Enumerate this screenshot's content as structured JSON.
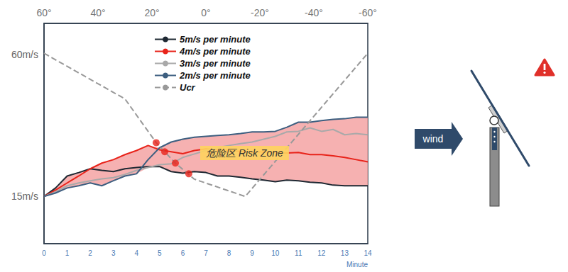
{
  "chart_data": {
    "type": "line",
    "x": [
      0,
      0.5,
      1,
      1.5,
      2,
      2.5,
      3,
      3.5,
      4,
      4.5,
      5,
      5.5,
      6,
      6.5,
      7,
      7.5,
      8,
      8.5,
      9,
      9.5,
      10,
      10.5,
      11,
      11.5,
      12,
      12.5,
      13,
      13.5,
      14
    ],
    "series": [
      {
        "name": "5m/s per minute",
        "color": "#1e2832",
        "values": [
          15,
          17.7,
          21.5,
          22.6,
          23.8,
          23.3,
          22.9,
          23.8,
          24.2,
          24.5,
          24.5,
          22.9,
          22.4,
          22.9,
          22.6,
          21.5,
          21.5,
          21.1,
          20.6,
          20.2,
          19.7,
          20.2,
          20.0,
          19.5,
          19.3,
          18.6,
          18.4,
          18.4,
          18.4
        ]
      },
      {
        "name": "4m/s per minute",
        "color": "#e8231a",
        "values": [
          15,
          17.0,
          19.3,
          21.5,
          23.8,
          25.6,
          26.7,
          28.3,
          29.6,
          31.2,
          29.8,
          29.2,
          28.6,
          29.6,
          30.1,
          29.8,
          29.6,
          29.3,
          29.0,
          29.2,
          29.0,
          28.8,
          29.0,
          28.3,
          28.3,
          27.9,
          27.4,
          26.7,
          26.0
        ]
      },
      {
        "name": "3m/s per minute",
        "color": "#a9a9a9",
        "values": [
          15,
          16.5,
          18.4,
          19.3,
          20.0,
          20.6,
          21.0,
          22.0,
          23.3,
          24.2,
          25.1,
          25.4,
          27.4,
          28.5,
          29.6,
          30.5,
          31.2,
          31.8,
          32.3,
          33.2,
          34.1,
          35.5,
          35.7,
          36.8,
          35.7,
          36.3,
          34.6,
          35.0,
          34.6
        ]
      },
      {
        "name": "2m/s per minute",
        "color": "#3d5f80",
        "values": [
          15,
          16.1,
          17.7,
          18.4,
          19.3,
          18.4,
          20.0,
          21.5,
          22.2,
          26.7,
          30.5,
          32.3,
          33.2,
          33.8,
          34.1,
          34.4,
          34.6,
          35.0,
          35.5,
          35.5,
          35.7,
          37.0,
          38.6,
          38.6,
          39.1,
          39.5,
          39.7,
          40.2,
          40.2
        ]
      },
      {
        "name": "Ucr",
        "color": "#999999",
        "line_style": "dashed",
        "x": [
          0,
          3.5,
          4.85,
          5.68,
          6.5,
          8.7,
          14
        ],
        "values": [
          60.5,
          46,
          32.1,
          25.6,
          20.5,
          15,
          60.5
        ]
      }
    ],
    "xlim": [
      0,
      14
    ],
    "xticks": [
      0,
      1,
      2,
      3,
      4,
      5,
      6,
      7,
      8,
      9,
      10,
      11,
      12,
      13,
      14
    ],
    "xlabel": "Minute",
    "x2lim": [
      60,
      -60
    ],
    "x2ticks": [
      {
        "value": 60,
        "label": "60°"
      },
      {
        "value": 40,
        "label": "40°"
      },
      {
        "value": 20,
        "label": "20°"
      },
      {
        "value": 0,
        "label": "0°"
      },
      {
        "value": -20,
        "label": "-20°"
      },
      {
        "value": -40,
        "label": "-40°"
      },
      {
        "value": -60,
        "label": "-60°"
      }
    ],
    "ylim": [
      0,
      70
    ],
    "yticks": [
      {
        "value": 15,
        "label": "15m/s"
      },
      {
        "value": 60,
        "label": "60m/s"
      }
    ],
    "grid": false,
    "legend": "top",
    "risk_zone": {
      "label": "危险区 Risk Zone",
      "color": "#f4a3a3"
    },
    "intersections": {
      "color": "#e8231a",
      "x": [
        4.85,
        5.22,
        5.68,
        6.26
      ],
      "y": [
        32.1,
        29.2,
        25.6,
        22.2
      ]
    }
  },
  "diagram": {
    "arrow_label": "wind"
  }
}
